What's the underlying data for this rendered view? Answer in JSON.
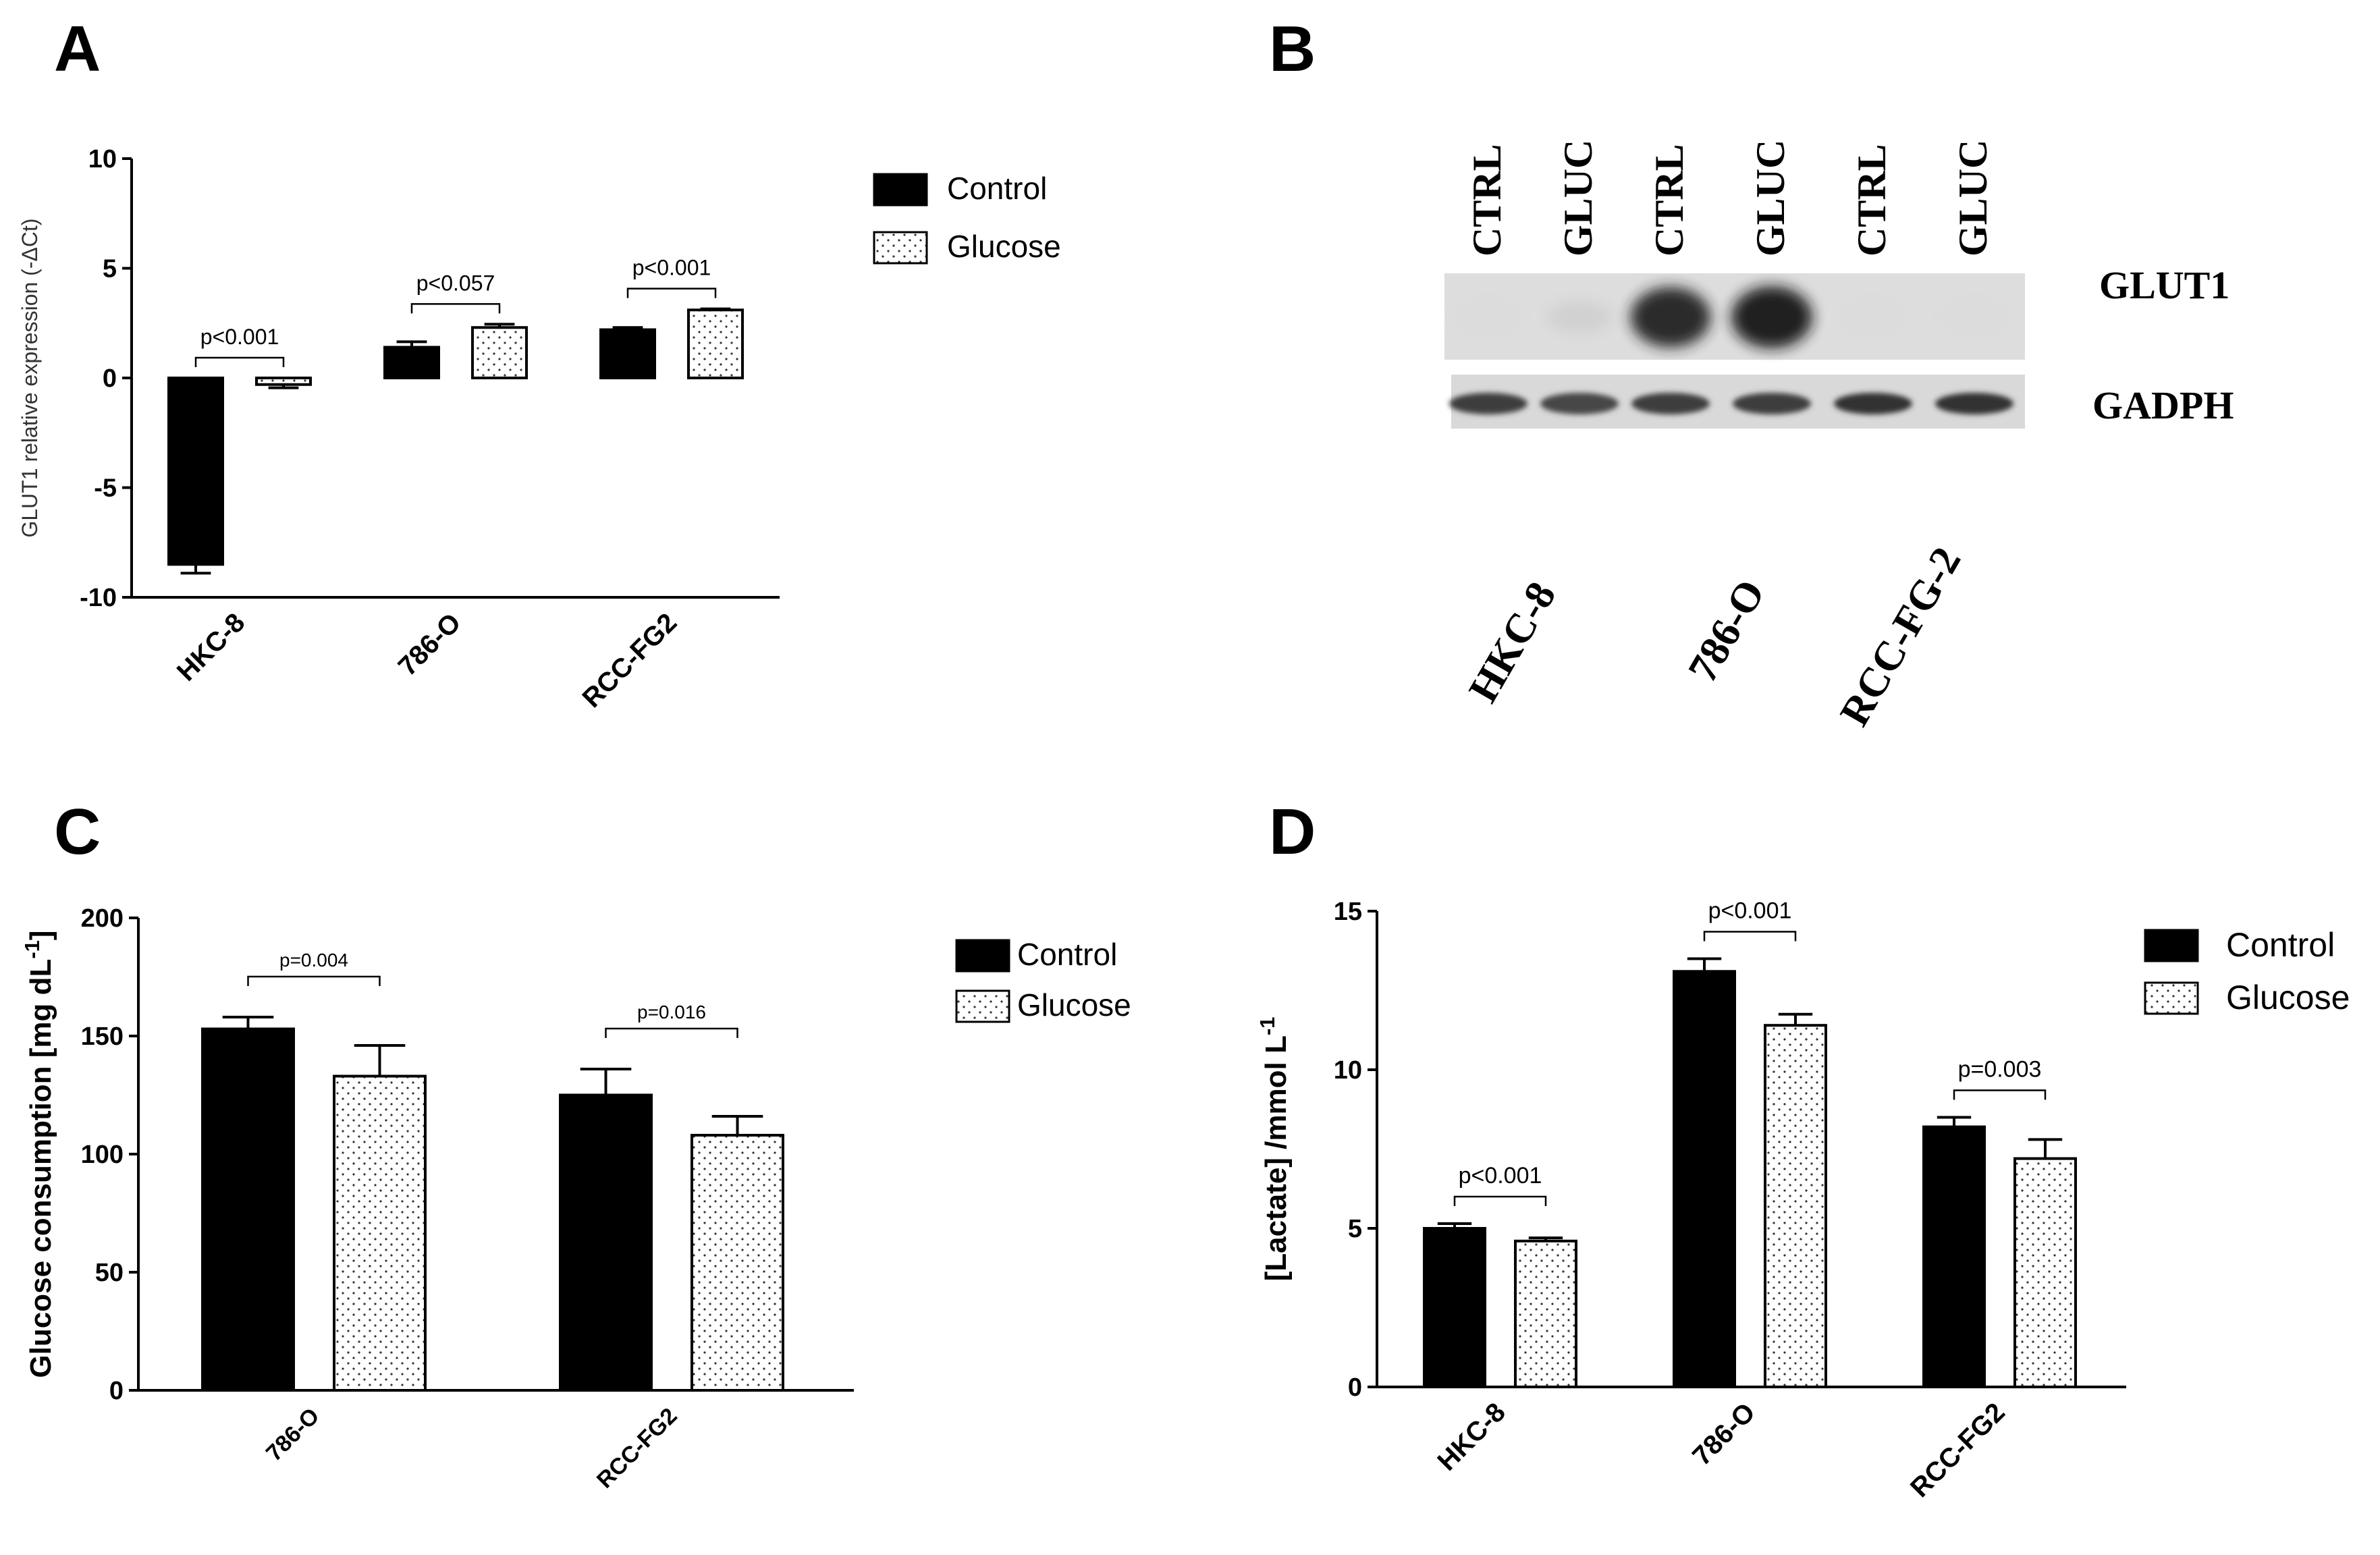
{
  "panels": {
    "A": {
      "letter": "A"
    },
    "B": {
      "letter": "B"
    },
    "C": {
      "letter": "C"
    },
    "D": {
      "letter": "D"
    }
  },
  "legend": {
    "control": "Control",
    "glucose": "Glucose"
  },
  "colors": {
    "control": "#000000",
    "glucose_fill": "#ffffff",
    "glucose_dots": "#333333",
    "axis": "#000000"
  },
  "chart_data": [
    {
      "panel": "A",
      "type": "bar",
      "title": "",
      "ylabel": "GLUT1 relative expression (-ΔCt)",
      "xlabel": "",
      "ylim": [
        -10,
        10
      ],
      "yticks": [
        -10,
        -5,
        0,
        5,
        10
      ],
      "categories": [
        "HKC-8",
        "786-O",
        "RCC-FG2"
      ],
      "series": [
        {
          "name": "Control",
          "values": [
            -8.5,
            1.4,
            2.2
          ],
          "errors": [
            0.4,
            0.25,
            0.1
          ]
        },
        {
          "name": "Glucose",
          "values": [
            -0.3,
            2.3,
            3.1
          ],
          "errors": [
            0.15,
            0.15,
            0.05
          ]
        }
      ],
      "annotations": [
        "p<0.001",
        "p<0.057",
        "p<0.001"
      ],
      "legend": "top-right"
    },
    {
      "panel": "C",
      "type": "bar",
      "title": "",
      "ylabel": "Glucose consumption [mg dL",
      "ylabel_sup": "-1",
      "ylabel_end": "]",
      "xlabel": "",
      "ylim": [
        0,
        200
      ],
      "yticks": [
        0,
        50,
        100,
        150,
        200
      ],
      "categories": [
        "786-O",
        "RCC-FG2"
      ],
      "series": [
        {
          "name": "Control",
          "values": [
            153,
            125
          ],
          "errors": [
            5,
            11
          ]
        },
        {
          "name": "Glucose",
          "values": [
            133,
            108
          ],
          "errors": [
            13,
            8
          ]
        }
      ],
      "annotations": [
        "p=0.004",
        "p=0.016"
      ],
      "legend": "top-right"
    },
    {
      "panel": "D",
      "type": "bar",
      "title": "",
      "ylabel": "[Lactate] /mmol L",
      "ylabel_sup": "-1",
      "ylabel_end": "",
      "xlabel": "",
      "ylim": [
        0,
        15
      ],
      "yticks": [
        0,
        5,
        10,
        15
      ],
      "categories": [
        "HKC-8",
        "786-O",
        "RCC-FG2"
      ],
      "series": [
        {
          "name": "Control",
          "values": [
            5.0,
            13.1,
            8.2
          ],
          "errors": [
            0.15,
            0.4,
            0.3
          ]
        },
        {
          "name": "Glucose",
          "values": [
            4.6,
            11.4,
            7.2
          ],
          "errors": [
            0.1,
            0.35,
            0.6
          ]
        }
      ],
      "annotations": [
        "p<0.001",
        "p<0.001",
        "p=0.003"
      ],
      "legend": "top-right"
    }
  ],
  "blot": {
    "lanes": [
      "CTRL",
      "GLUC",
      "CTRL",
      "GLUC",
      "CTRL",
      "GLUC"
    ],
    "proteins": [
      "GLUT1",
      "GADPH"
    ],
    "cell_lines": [
      "HKC-8",
      "786-O",
      "RCC-FG-2"
    ],
    "glut1_intensity": [
      0.15,
      0.2,
      0.95,
      1.0,
      0.15,
      0.15
    ],
    "gadph_intensity": [
      0.85,
      0.8,
      0.85,
      0.85,
      0.9,
      0.9
    ]
  }
}
